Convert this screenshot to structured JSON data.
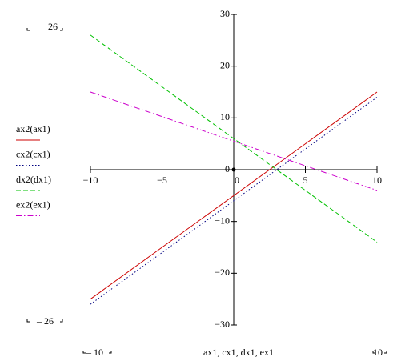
{
  "chart_data": {
    "type": "line",
    "x_axis_label": "ax1, cx1, dx1, ex1",
    "x": [
      -10,
      10
    ],
    "series": [
      {
        "name": "ax2(ax1)",
        "color": "#cc0000",
        "dash": "solid",
        "values": [
          -25,
          15
        ]
      },
      {
        "name": "cx2(cx1)",
        "color": "#000080",
        "dash": "dotted",
        "values": [
          -26,
          14
        ]
      },
      {
        "name": "dx2(dx1)",
        "color": "#00c000",
        "dash": "dashed",
        "values": [
          26,
          -14
        ]
      },
      {
        "name": "ex2(ex1)",
        "color": "#cc00cc",
        "dash": "dashdot",
        "values": [
          15,
          -4
        ]
      }
    ],
    "xlim": [
      -10,
      10
    ],
    "xticks": [
      {
        "value": -10,
        "label": "−10"
      },
      {
        "value": -5,
        "label": "−5"
      },
      0,
      5,
      10
    ],
    "ylim": [
      -30,
      30
    ],
    "yticks": [
      30,
      20,
      10,
      0,
      {
        "value": -10,
        "label": "−10"
      },
      {
        "value": -20,
        "label": "−20"
      },
      {
        "value": -30,
        "label": "−30"
      }
    ],
    "range_labels": {
      "y_top": "26",
      "y_bottom": "– 26",
      "x_left": "– 10",
      "x_right": "10"
    }
  }
}
